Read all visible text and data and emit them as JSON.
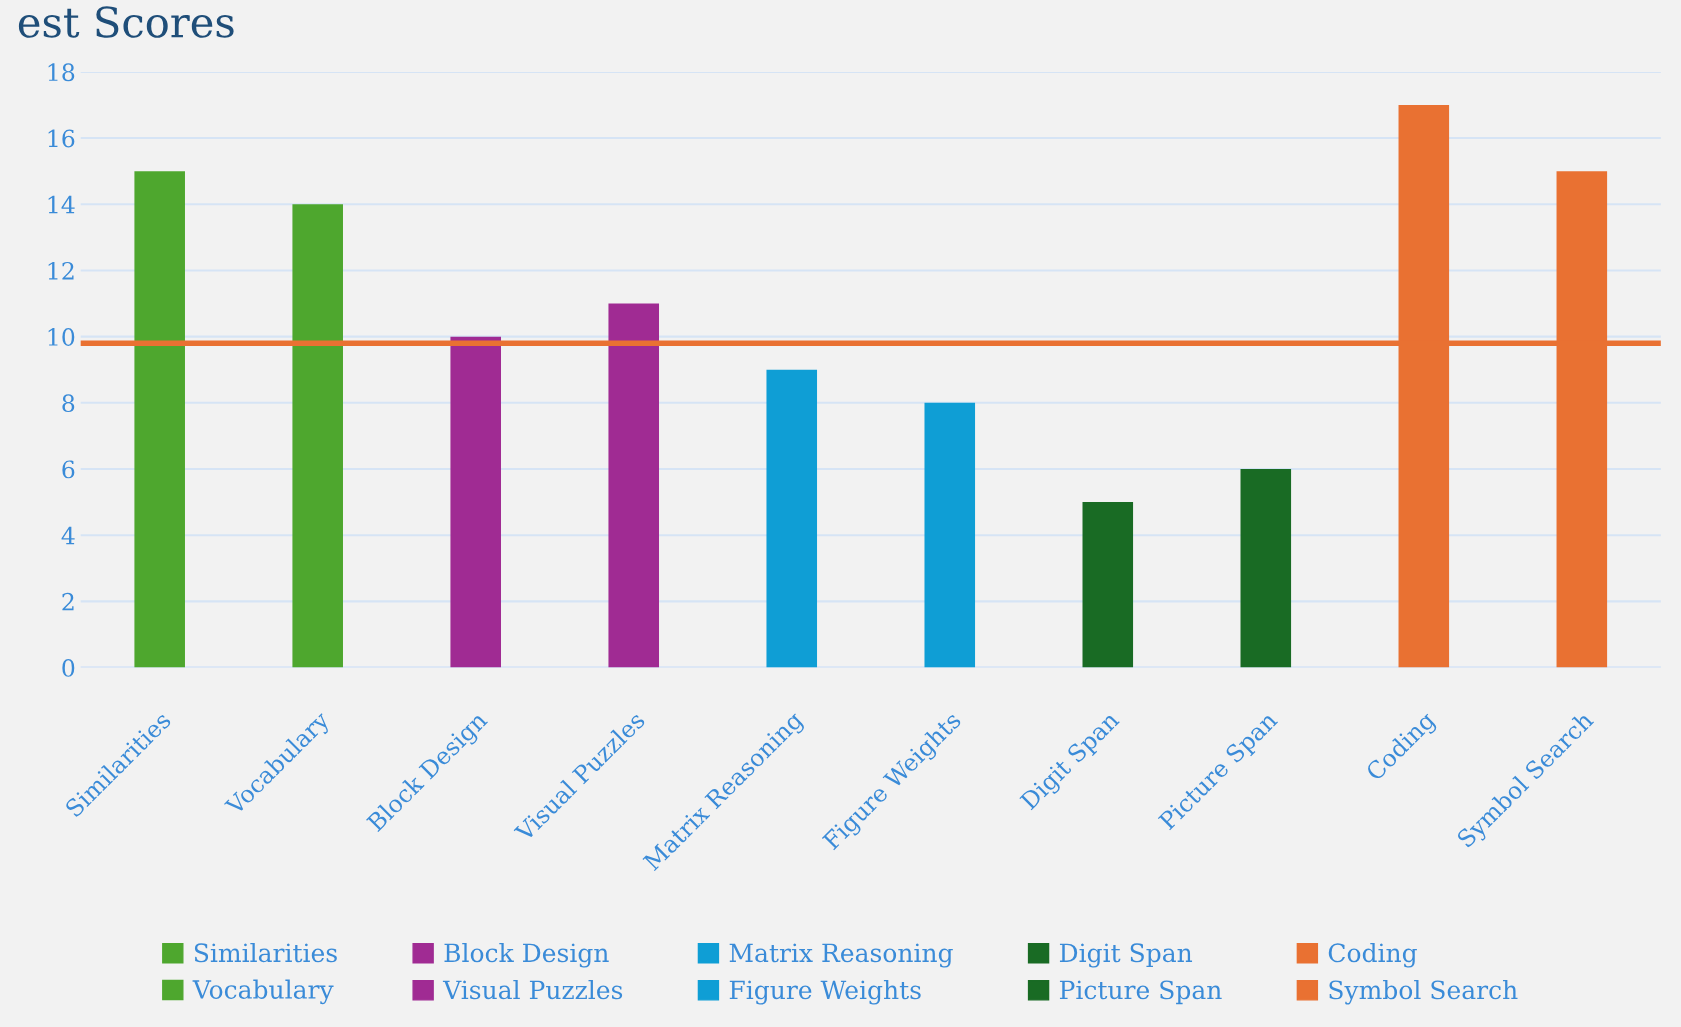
{
  "chart_data": {
    "type": "bar",
    "title": "est Scores",
    "categories": [
      "Similarities",
      "Vocabulary",
      "Block Design",
      "Visual Puzzles",
      "Matrix Reasoning",
      "Figure Weights",
      "Digit Span",
      "Picture Span",
      "Coding",
      "Symbol Search"
    ],
    "series": [
      {
        "name": "Similarities",
        "color": "#4EA72E",
        "values": [
          15,
          null,
          null,
          null,
          null,
          null,
          null,
          null,
          null,
          null
        ]
      },
      {
        "name": "Vocabulary",
        "color": "#4EA72E",
        "values": [
          null,
          14,
          null,
          null,
          null,
          null,
          null,
          null,
          null,
          null
        ]
      },
      {
        "name": "Block Design",
        "color": "#A02B93",
        "values": [
          null,
          null,
          10,
          null,
          null,
          null,
          null,
          null,
          null,
          null
        ]
      },
      {
        "name": "Visual Puzzles",
        "color": "#A02B93",
        "values": [
          null,
          null,
          null,
          11,
          null,
          null,
          null,
          null,
          null,
          null
        ]
      },
      {
        "name": "Matrix Reasoning",
        "color": "#0F9ED5",
        "values": [
          null,
          null,
          null,
          null,
          9,
          null,
          null,
          null,
          null,
          null
        ]
      },
      {
        "name": "Figure Weights",
        "color": "#0F9ED5",
        "values": [
          null,
          null,
          null,
          null,
          null,
          8,
          null,
          null,
          null,
          null
        ]
      },
      {
        "name": "Digit Span",
        "color": "#196B24",
        "values": [
          null,
          null,
          null,
          null,
          null,
          null,
          5,
          null,
          null,
          null
        ]
      },
      {
        "name": "Picture Span",
        "color": "#196B24",
        "values": [
          null,
          null,
          null,
          null,
          null,
          null,
          null,
          6,
          null,
          null
        ]
      },
      {
        "name": "Coding",
        "color": "#E97132",
        "values": [
          null,
          null,
          null,
          null,
          null,
          null,
          null,
          null,
          17,
          null
        ]
      },
      {
        "name": "Symbol Search",
        "color": "#E97132",
        "values": [
          null,
          null,
          null,
          null,
          null,
          null,
          null,
          null,
          null,
          15
        ]
      }
    ],
    "ylim": [
      0,
      18
    ],
    "yticks": [
      0,
      2,
      4,
      6,
      8,
      10,
      12,
      14,
      16,
      18
    ],
    "grid": "y",
    "legend": "bottom",
    "ref_lines": [
      {
        "axis": "y",
        "value": 9.8,
        "color": "#E97132"
      }
    ]
  }
}
